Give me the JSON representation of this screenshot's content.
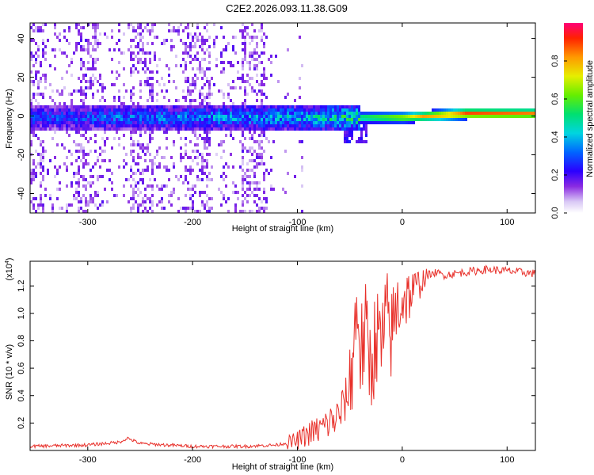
{
  "title": "C2E2.2026.093.11.38.G09",
  "chart_data": [
    {
      "type": "heatmap",
      "xlabel": "Height of straight line (km)",
      "ylabel": "Frequency (Hz)",
      "xlim": [
        -355,
        127
      ],
      "ylim": [
        -50,
        48
      ],
      "xticks": [
        -300,
        -200,
        -100,
        0,
        100
      ],
      "yticks": [
        -40,
        -20,
        0,
        20,
        40
      ],
      "colorbar": {
        "label": "Normalized spectral amplitude",
        "range": [
          0.0,
          1.0
        ],
        "ticks": [
          "0.0",
          "0.2",
          "0.4",
          "0.6",
          "0.8"
        ],
        "tick_values": [
          0.0,
          0.2,
          0.4,
          0.6,
          0.8
        ]
      },
      "ridge": {
        "description_points": [
          {
            "x": -300,
            "freq": 0,
            "amp": 0.35
          },
          {
            "x": -200,
            "freq": 0,
            "amp": 0.4
          },
          {
            "x": -100,
            "freq": 0,
            "amp": 0.45
          },
          {
            "x": -40,
            "freq": 0,
            "amp": 0.6
          },
          {
            "x": 0,
            "freq": 0,
            "amp": 0.75
          },
          {
            "x": 60,
            "freq": 2,
            "amp": 0.95
          },
          {
            "x": 120,
            "freq": 2,
            "amp": 0.9
          }
        ]
      }
    },
    {
      "type": "line",
      "xlabel": "Height of straight line (km)",
      "ylabel": "SNR (10 * v/v)",
      "yscale_label": "(x10",
      "yscale_exponent": "4",
      "xlim": [
        -355,
        127
      ],
      "ylim": [
        0.0,
        1.38
      ],
      "xticks": [
        -300,
        -200,
        -100,
        0,
        100
      ],
      "yticks": [
        0.2,
        0.4,
        0.6,
        0.8,
        1.0,
        1.2
      ],
      "yticklabels": [
        "0.2",
        "0.4",
        "0.6",
        "0.8",
        "1.0",
        "1.2"
      ],
      "color": "#e8312b",
      "series": [
        {
          "name": "SNR",
          "x": [
            -355,
            -300,
            -270,
            -262,
            -250,
            -200,
            -150,
            -120,
            -100,
            -90,
            -80,
            -70,
            -60,
            -50,
            -45,
            -42,
            -40,
            -35,
            -30,
            -25,
            -20,
            -15,
            -10,
            -5,
            0,
            10,
            20,
            30,
            40,
            60,
            80,
            100,
            127
          ],
          "y": [
            0.03,
            0.04,
            0.06,
            0.09,
            0.05,
            0.03,
            0.03,
            0.04,
            0.07,
            0.12,
            0.15,
            0.2,
            0.25,
            0.45,
            0.9,
            1.05,
            0.7,
            0.85,
            0.6,
            0.85,
            0.75,
            0.95,
            0.85,
            1.05,
            1.1,
            1.15,
            1.25,
            1.3,
            1.28,
            1.3,
            1.32,
            1.31,
            1.29
          ]
        }
      ]
    }
  ]
}
